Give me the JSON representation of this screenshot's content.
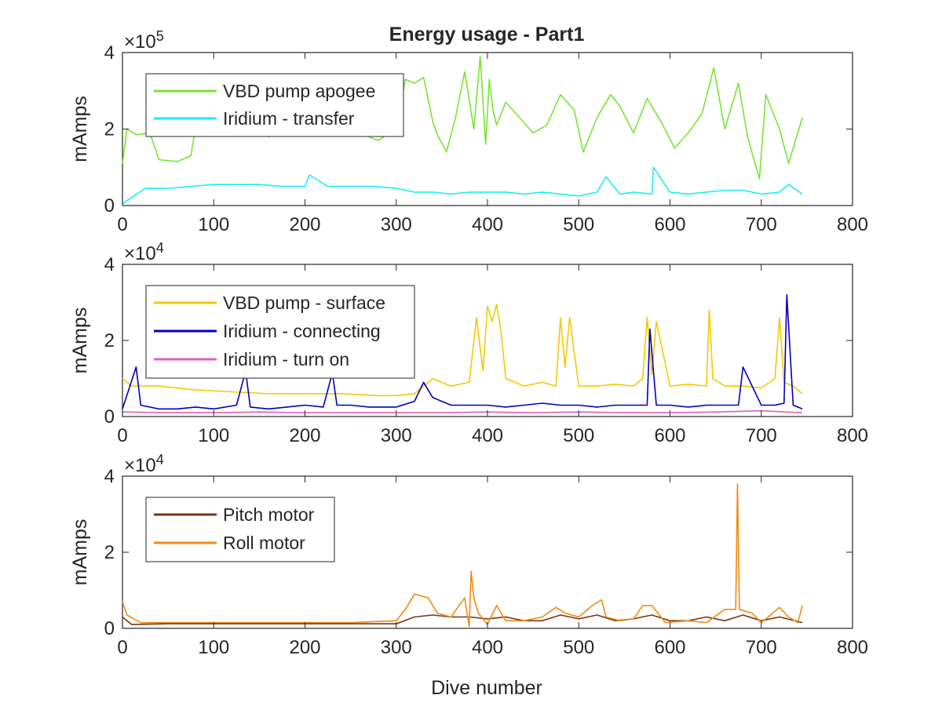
{
  "figure": {
    "title": "Energy usage - Part1",
    "xlabel": "Dive number",
    "background": "#ffffff",
    "axis_color": "#262626"
  },
  "chart_data": [
    {
      "type": "line",
      "ylabel": "mAmps",
      "exponent_base": "×10",
      "exponent_power": "5",
      "scale": 100000,
      "xlim": [
        0,
        800
      ],
      "ylim": [
        0,
        4
      ],
      "xticks": [
        0,
        100,
        200,
        300,
        400,
        500,
        600,
        700,
        800
      ],
      "yticks": [
        0,
        2,
        4
      ],
      "grid": false,
      "legend_position": "top-left",
      "series": [
        {
          "name": "VBD pump apogee",
          "color": "#77e533",
          "x": [
            0,
            5,
            15,
            30,
            40,
            60,
            75,
            80,
            100,
            120,
            140,
            160,
            180,
            200,
            220,
            240,
            260,
            280,
            300,
            310,
            320,
            330,
            340,
            345,
            355,
            365,
            375,
            385,
            392,
            398,
            402,
            406,
            410,
            420,
            435,
            450,
            465,
            480,
            495,
            505,
            520,
            535,
            545,
            560,
            575,
            590,
            605,
            620,
            635,
            648,
            660,
            675,
            685,
            698,
            705,
            720,
            730,
            745
          ],
          "y": [
            1.1,
            2.0,
            1.85,
            1.9,
            1.2,
            1.15,
            1.3,
            2.05,
            2.1,
            2.2,
            2.0,
            1.8,
            1.9,
            2.25,
            2.35,
            2.15,
            1.9,
            1.7,
            2.0,
            3.3,
            3.2,
            3.35,
            2.2,
            1.85,
            1.4,
            2.3,
            3.5,
            2.0,
            3.9,
            1.6,
            3.3,
            2.5,
            2.1,
            2.7,
            2.3,
            1.9,
            2.1,
            2.9,
            2.5,
            1.4,
            2.3,
            2.9,
            2.6,
            1.9,
            2.8,
            2.2,
            1.5,
            1.9,
            2.4,
            3.6,
            2.0,
            3.2,
            1.8,
            0.7,
            2.9,
            2.0,
            1.1,
            2.3
          ]
        },
        {
          "name": "Iridium - transfer",
          "color": "#18eefa",
          "x": [
            0,
            25,
            50,
            75,
            100,
            125,
            150,
            175,
            200,
            205,
            225,
            250,
            275,
            300,
            320,
            340,
            360,
            380,
            400,
            420,
            440,
            460,
            480,
            500,
            520,
            530,
            545,
            560,
            580,
            582,
            600,
            620,
            640,
            660,
            680,
            700,
            720,
            730,
            745
          ],
          "y": [
            0.05,
            0.45,
            0.45,
            0.5,
            0.55,
            0.55,
            0.55,
            0.5,
            0.5,
            0.8,
            0.5,
            0.5,
            0.5,
            0.45,
            0.35,
            0.35,
            0.3,
            0.35,
            0.35,
            0.35,
            0.3,
            0.35,
            0.3,
            0.25,
            0.35,
            0.75,
            0.3,
            0.35,
            0.3,
            1.0,
            0.35,
            0.3,
            0.35,
            0.4,
            0.4,
            0.3,
            0.35,
            0.55,
            0.3
          ]
        }
      ]
    },
    {
      "type": "line",
      "ylabel": "mAmps",
      "exponent_base": "×10",
      "exponent_power": "4",
      "scale": 10000,
      "xlim": [
        0,
        800
      ],
      "ylim": [
        0,
        4
      ],
      "xticks": [
        0,
        100,
        200,
        300,
        400,
        500,
        600,
        700,
        800
      ],
      "yticks": [
        0,
        2,
        4
      ],
      "grid": false,
      "legend_position": "top-left",
      "series": [
        {
          "name": "VBD pump - surface",
          "color": "#f5c800",
          "x": [
            0,
            10,
            40,
            80,
            120,
            160,
            200,
            240,
            280,
            300,
            320,
            340,
            360,
            380,
            388,
            395,
            400,
            405,
            410,
            415,
            420,
            440,
            460,
            475,
            480,
            485,
            490,
            500,
            520,
            540,
            560,
            570,
            575,
            580,
            585,
            600,
            620,
            640,
            643,
            647,
            660,
            680,
            700,
            715,
            720,
            725,
            735,
            745
          ],
          "y": [
            1.0,
            0.8,
            0.8,
            0.7,
            0.65,
            0.6,
            0.6,
            0.6,
            0.55,
            0.55,
            0.6,
            1.0,
            0.8,
            0.9,
            2.6,
            1.2,
            2.9,
            2.5,
            2.95,
            2.2,
            1.0,
            0.8,
            0.9,
            0.8,
            2.6,
            1.3,
            2.6,
            0.8,
            0.8,
            0.85,
            0.8,
            1.0,
            2.6,
            1.1,
            2.5,
            0.8,
            0.85,
            0.8,
            2.8,
            1.0,
            0.8,
            0.8,
            0.75,
            1.0,
            2.6,
            0.9,
            0.8,
            0.6
          ]
        },
        {
          "name": "Iridium - connecting",
          "color": "#0000c0",
          "x": [
            0,
            15,
            20,
            40,
            60,
            80,
            100,
            125,
            135,
            140,
            160,
            180,
            200,
            220,
            230,
            235,
            250,
            270,
            300,
            320,
            330,
            340,
            360,
            380,
            400,
            420,
            440,
            460,
            480,
            500,
            520,
            540,
            560,
            575,
            578,
            585,
            600,
            620,
            640,
            660,
            675,
            680,
            700,
            715,
            725,
            728,
            735,
            745
          ],
          "y": [
            0.2,
            1.3,
            0.3,
            0.2,
            0.2,
            0.25,
            0.2,
            0.3,
            1.2,
            0.25,
            0.2,
            0.25,
            0.3,
            0.25,
            1.15,
            0.3,
            0.3,
            0.25,
            0.25,
            0.4,
            0.9,
            0.5,
            0.3,
            0.3,
            0.3,
            0.25,
            0.3,
            0.35,
            0.3,
            0.3,
            0.25,
            0.3,
            0.3,
            0.3,
            2.3,
            0.3,
            0.3,
            0.25,
            0.3,
            0.3,
            0.3,
            1.3,
            0.3,
            0.3,
            0.35,
            3.2,
            0.3,
            0.2
          ]
        },
        {
          "name": "Iridium - turn on",
          "color": "#e060b8",
          "x": [
            0,
            50,
            100,
            150,
            200,
            250,
            300,
            350,
            400,
            450,
            500,
            550,
            600,
            650,
            700,
            745
          ],
          "y": [
            0.12,
            0.1,
            0.1,
            0.12,
            0.1,
            0.1,
            0.1,
            0.1,
            0.12,
            0.1,
            0.12,
            0.1,
            0.1,
            0.12,
            0.15,
            0.1
          ]
        }
      ]
    },
    {
      "type": "line",
      "ylabel": "mAmps",
      "exponent_base": "×10",
      "exponent_power": "4",
      "scale": 10000,
      "xlim": [
        0,
        800
      ],
      "ylim": [
        0,
        4
      ],
      "xticks": [
        0,
        100,
        200,
        300,
        400,
        500,
        600,
        700,
        800
      ],
      "yticks": [
        0,
        2,
        4
      ],
      "grid": false,
      "legend_position": "top-left",
      "series": [
        {
          "name": "Pitch motor",
          "color": "#7a3510",
          "x": [
            0,
            10,
            50,
            100,
            150,
            200,
            250,
            300,
            320,
            340,
            360,
            380,
            400,
            420,
            440,
            460,
            480,
            500,
            520,
            540,
            560,
            580,
            600,
            620,
            640,
            660,
            680,
            700,
            720,
            745
          ],
          "y": [
            0.3,
            0.1,
            0.12,
            0.12,
            0.12,
            0.12,
            0.12,
            0.12,
            0.3,
            0.35,
            0.3,
            0.3,
            0.25,
            0.3,
            0.2,
            0.2,
            0.35,
            0.25,
            0.35,
            0.2,
            0.25,
            0.35,
            0.2,
            0.2,
            0.3,
            0.2,
            0.35,
            0.2,
            0.3,
            0.15
          ]
        },
        {
          "name": "Roll motor",
          "color": "#f08a10",
          "x": [
            0,
            5,
            20,
            50,
            100,
            150,
            200,
            250,
            300,
            310,
            320,
            335,
            345,
            360,
            375,
            380,
            382,
            385,
            390,
            400,
            410,
            420,
            440,
            460,
            475,
            485,
            500,
            515,
            525,
            530,
            545,
            560,
            570,
            580,
            595,
            620,
            640,
            660,
            672,
            674,
            676,
            690,
            700,
            720,
            730,
            740,
            745
          ],
          "y": [
            0.7,
            0.35,
            0.15,
            0.15,
            0.15,
            0.15,
            0.15,
            0.15,
            0.2,
            0.5,
            0.9,
            0.8,
            0.4,
            0.3,
            0.8,
            0.05,
            1.5,
            0.8,
            0.4,
            0.1,
            0.6,
            0.2,
            0.2,
            0.3,
            0.55,
            0.4,
            0.3,
            0.6,
            0.75,
            0.3,
            0.2,
            0.25,
            0.6,
            0.6,
            0.15,
            0.2,
            0.15,
            0.5,
            0.5,
            3.8,
            0.5,
            0.4,
            0.15,
            0.55,
            0.3,
            0.15,
            0.6
          ]
        }
      ]
    }
  ]
}
